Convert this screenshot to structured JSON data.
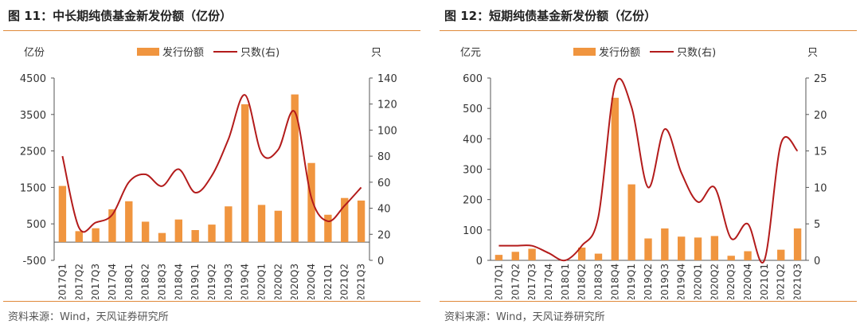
{
  "colors": {
    "bar": "#f0953f",
    "line": "#b31b1b",
    "rule": "#e08a3a"
  },
  "panels": [
    {
      "title": "图 11：中长期纯债基金新发份额（亿份）",
      "source": "资料来源：Wind，天风证券研究所"
    },
    {
      "title": "图 12：短期纯债基金新发份额（亿份）",
      "source": "资料来源：Wind，天风证券研究所"
    }
  ],
  "chart_data": [
    {
      "type": "bar",
      "title": "图 11：中长期纯债基金新发份额（亿份）",
      "categories": [
        "2017Q1",
        "2017Q2",
        "2017Q3",
        "2017Q4",
        "2018Q1",
        "2018Q2",
        "2018Q3",
        "2018Q4",
        "2019Q1",
        "2019Q2",
        "2019Q3",
        "2019Q4",
        "2020Q1",
        "2020Q2",
        "2020Q3",
        "2020Q4",
        "2021Q1",
        "2021Q2",
        "2021Q3"
      ],
      "left_axis_label": "亿份",
      "right_axis_label": "只",
      "left_ylim": [
        -500,
        4500
      ],
      "left_ticks": [
        "-500",
        "500",
        "1500",
        "2500",
        "3500",
        "4500"
      ],
      "right_ylim": [
        0,
        140
      ],
      "right_ticks": [
        "0",
        "20",
        "40",
        "60",
        "80",
        "100",
        "120",
        "140"
      ],
      "legend": [
        "发行份额",
        "只数(右)"
      ],
      "series": [
        {
          "name": "发行份额",
          "kind": "bar",
          "axis": "left",
          "values": [
            1540,
            300,
            380,
            900,
            1120,
            560,
            250,
            620,
            330,
            480,
            980,
            3780,
            1020,
            860,
            4050,
            2170,
            750,
            1210,
            1140
          ]
        },
        {
          "name": "只数(右)",
          "kind": "line",
          "axis": "right",
          "values": [
            80,
            25,
            29,
            35,
            60,
            66,
            57,
            70,
            52,
            65,
            93,
            127,
            82,
            85,
            114,
            48,
            30,
            42,
            56
          ]
        }
      ]
    },
    {
      "type": "bar",
      "title": "图 12：短期纯债基金新发份额（亿份）",
      "categories": [
        "2017Q1",
        "2017Q2",
        "2017Q3",
        "2017Q4",
        "2018Q1",
        "2018Q2",
        "2018Q3",
        "2018Q4",
        "2019Q1",
        "2019Q2",
        "2019Q3",
        "2019Q4",
        "2020Q1",
        "2020Q2",
        "2020Q3",
        "2020Q4",
        "2021Q1",
        "2021Q2",
        "2021Q3"
      ],
      "left_axis_label": "亿元",
      "right_axis_label": "只",
      "left_ylim": [
        0,
        600
      ],
      "left_ticks": [
        "0",
        "100",
        "200",
        "300",
        "400",
        "500",
        "600"
      ],
      "right_ylim": [
        0,
        25
      ],
      "right_ticks": [
        "0",
        "5",
        "10",
        "15",
        "20",
        "25"
      ],
      "legend": [
        "发行份额",
        "只数(右)"
      ],
      "series": [
        {
          "name": "发行份额",
          "kind": "bar",
          "axis": "left",
          "values": [
            18,
            28,
            38,
            0,
            0,
            42,
            22,
            535,
            250,
            72,
            105,
            78,
            75,
            80,
            15,
            30,
            0,
            35,
            105
          ]
        },
        {
          "name": "只数(右)",
          "kind": "line",
          "axis": "right",
          "values": [
            2,
            2,
            2,
            1,
            0,
            2,
            6,
            24,
            21,
            10,
            18,
            12,
            8,
            10,
            3,
            5,
            0,
            16,
            15
          ]
        }
      ]
    }
  ]
}
